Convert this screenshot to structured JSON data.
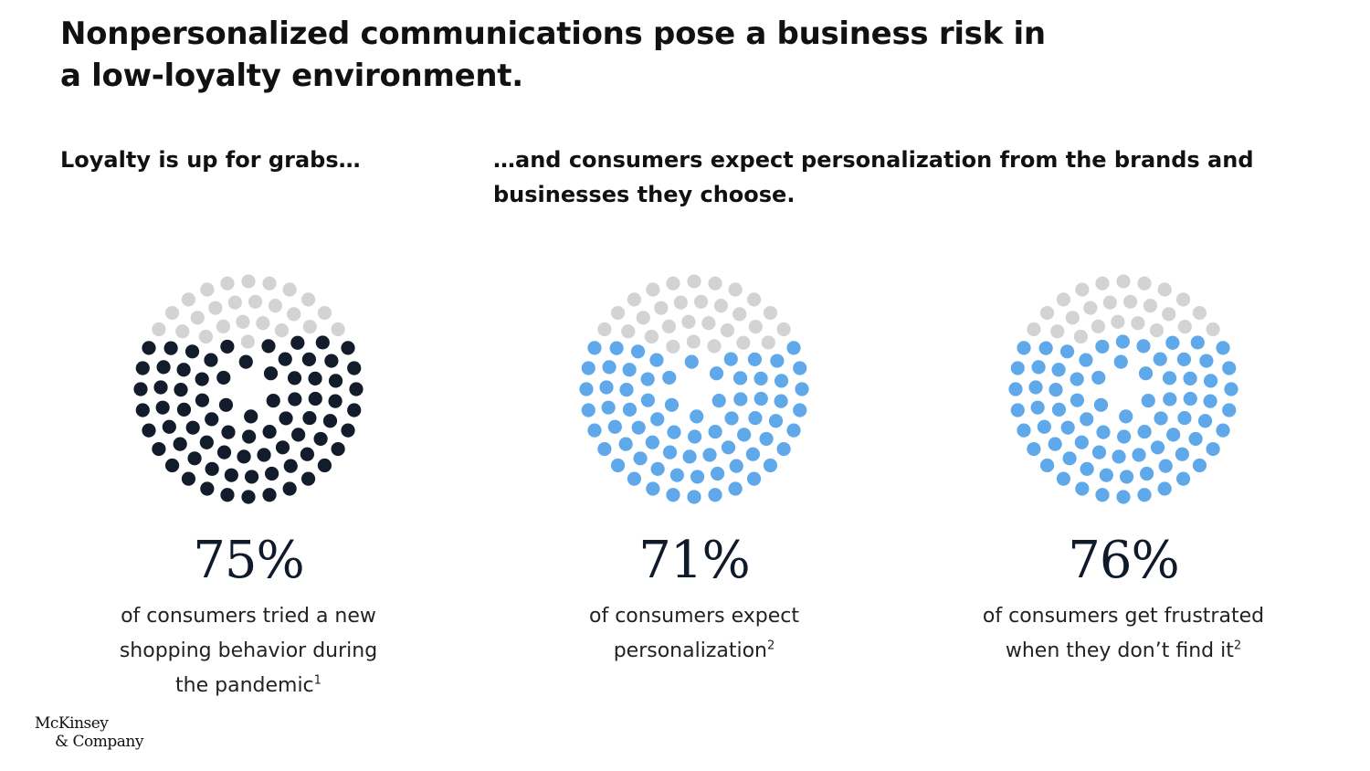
{
  "title": "Nonpersonalized communications pose a business risk in a low-loyalty environment.",
  "subheads": {
    "left": "Loyalty is up for grabs…",
    "right": "…and consumers expect personalization from the brands and businesses they choose."
  },
  "colors": {
    "empty_dot": "#d3d3d3",
    "dark_dot": "#121c2b",
    "blue_dot": "#5fa9ea"
  },
  "chart_data": [
    {
      "type": "dot-proportion",
      "value": 75,
      "unit": "%",
      "label": "75%",
      "description": "of consumers tried a new shopping behavior during the pandemic",
      "footnote": "1",
      "fill_color": "#121c2b"
    },
    {
      "type": "dot-proportion",
      "value": 71,
      "unit": "%",
      "label": "71%",
      "description": "of consumers expect personalization",
      "footnote": "2",
      "fill_color": "#5fa9ea"
    },
    {
      "type": "dot-proportion",
      "value": 76,
      "unit": "%",
      "label": "76%",
      "description": "of consumers get frustrated when they don’t find it",
      "footnote": "2",
      "fill_color": "#5fa9ea"
    }
  ],
  "logo": {
    "line1": "McKinsey",
    "line2": "& Company"
  }
}
